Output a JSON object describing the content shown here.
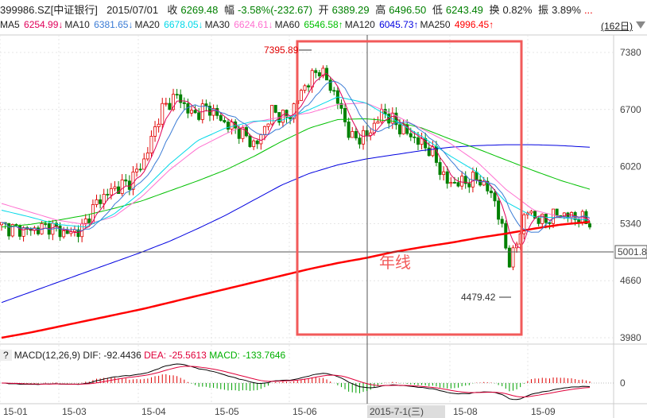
{
  "header": {
    "code": "399986.SZ[中证银行]",
    "date": "2015/07/01",
    "close_label": "收",
    "close": "6269.48",
    "chg_label": "幅",
    "chg": "-3.58%(-232.67)",
    "open_label": "开",
    "open": "6389.29",
    "high_label": "高",
    "high": "6496.50",
    "low_label": "低",
    "low": "6243.49",
    "turn_label": "换",
    "turn": "0.82%",
    "amp_label": "振",
    "amp": "3.89%",
    "more": "..."
  },
  "ma_legend": [
    {
      "name": "MA5",
      "value": "6254.99↓",
      "color": "#e0005a"
    },
    {
      "name": "MA10",
      "value": "6381.65↓",
      "color": "#3a7bd5"
    },
    {
      "name": "MA20",
      "value": "6678.05↓",
      "color": "#00d8e8"
    },
    {
      "name": "MA30",
      "value": "6624.61↓",
      "color": "#ff70d0"
    },
    {
      "name": "MA60",
      "value": "6546.58↑",
      "color": "#00c000"
    },
    {
      "name": "MA120",
      "value": "6045.73↑",
      "color": "#0000e0"
    },
    {
      "name": "MA250",
      "value": "4996.45↑",
      "color": "#ff0000"
    }
  ],
  "period": "(162日)",
  "chart_data": {
    "type": "candlestick",
    "candles": 162,
    "up_color": "#e00000",
    "down_color": "#008000",
    "close_sampled": [
      5313,
      5265,
      5265,
      5313,
      5220,
      5265,
      5600,
      5750,
      5830,
      6100,
      6680,
      6870,
      6630,
      6730,
      6540,
      6440,
      6260,
      6680,
      6590,
      6965,
      7190,
      6870,
      6350,
      6390,
      6680,
      6490,
      6350,
      6210,
      5830,
      5830,
      5880,
      5640,
      4850,
      5500,
      5360,
      5460,
      5420,
      5360
    ],
    "ma_sampled": {
      "MA250": [
        3980,
        4040,
        4110,
        4180,
        4250,
        4320,
        4400,
        4480,
        4560,
        4640,
        4720,
        4800,
        4870,
        4930,
        5001.8,
        5060,
        5110,
        5170,
        5220,
        5280,
        5330,
        5360
      ],
      "MA120": [
        4400,
        4520,
        4640,
        4760,
        4880,
        5000,
        5130,
        5280,
        5440,
        5620,
        5800,
        5940,
        6040,
        6110,
        6160,
        6210,
        6250,
        6270,
        6280,
        6280,
        6270,
        6250
      ],
      "MA60": [
        5300,
        5330,
        5380,
        5440,
        5520,
        5610,
        5730,
        5850,
        5980,
        6140,
        6320,
        6480,
        6580,
        6590,
        6560,
        6480,
        6350,
        6230,
        6100,
        5970,
        5850,
        5750
      ],
      "MA30": [
        5580,
        5480,
        5380,
        5330,
        5420,
        5660,
        5980,
        6240,
        6410,
        6550,
        6610,
        6660,
        6760,
        6780,
        6640,
        6470,
        6300,
        6070,
        5750,
        5500,
        5420,
        5400
      ],
      "MA20": [
        5500,
        5420,
        5330,
        5300,
        5450,
        5720,
        6050,
        6330,
        6480,
        6560,
        6570,
        6700,
        6850,
        6780,
        6580,
        6380,
        6150,
        5950,
        5600,
        5420,
        5410,
        5380
      ]
    },
    "y_ticks": [
      7380,
      6700,
      6020,
      5340,
      4660,
      3980
    ],
    "ylim": [
      3880,
      7580
    ],
    "crosshair_price": "5001.8",
    "x_ticks": [
      "15-01",
      "15-03",
      "15-04",
      "15-05",
      "15-06",
      "15-08",
      "15-09"
    ],
    "crosshair_date": "2015-7-1(三)",
    "annotations": {
      "high": "7395.89",
      "low": "4479.42",
      "box_label": "年线"
    },
    "macd": {
      "title": "MACD(12,26,9)",
      "dif_label": "DIF: -92.4436",
      "dea_label": "DEA: -25.5613",
      "macd_label": "MACD: -133.7646",
      "zero": "0",
      "dif_color": "#000000",
      "dea_color": "#e0003a"
    },
    "help": "?"
  }
}
